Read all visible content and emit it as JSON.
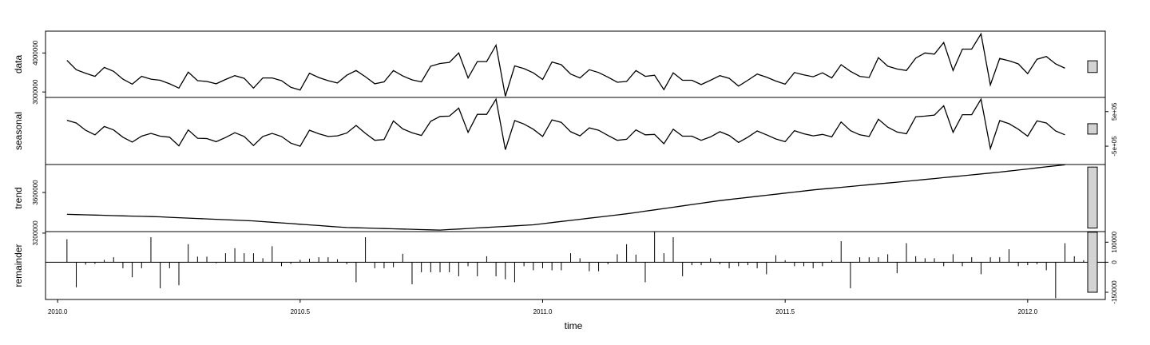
{
  "chart_data": {
    "type": "line",
    "title": "",
    "xlabel": "time",
    "xlim": [
      2009.975,
      2012.16
    ],
    "x_ticks": [
      {
        "value": 2010.0,
        "label": "2010.0"
      },
      {
        "value": 2010.5,
        "label": "2010.5"
      },
      {
        "value": 2011.0,
        "label": "2011.0"
      },
      {
        "value": 2011.5,
        "label": "2011.5"
      },
      {
        "value": 2012.0,
        "label": "2012.0"
      }
    ],
    "x_start": 2010.0192,
    "x_step": 0.0192308,
    "panels": [
      {
        "name": "data",
        "ylabel": "data",
        "kind": "line",
        "ylim": [
          2860000,
          4560000
        ],
        "y_ticks": [
          {
            "value": 3000000,
            "label": "3000000"
          },
          {
            "value": 4000000,
            "label": "4000000"
          }
        ],
        "scale_bar": [
          3500000,
          3800000
        ],
        "values": [
          3810000,
          3570000,
          3480000,
          3400000,
          3630000,
          3530000,
          3330000,
          3200000,
          3400000,
          3330000,
          3300000,
          3210000,
          3100000,
          3510000,
          3290000,
          3270000,
          3210000,
          3320000,
          3420000,
          3350000,
          3100000,
          3360000,
          3360000,
          3290000,
          3120000,
          3050000,
          3480000,
          3370000,
          3290000,
          3230000,
          3430000,
          3550000,
          3390000,
          3210000,
          3260000,
          3550000,
          3410000,
          3310000,
          3260000,
          3660000,
          3730000,
          3760000,
          4000000,
          3360000,
          3780000,
          3780000,
          4200000,
          2890000,
          3670000,
          3600000,
          3490000,
          3320000,
          3770000,
          3700000,
          3460000,
          3360000,
          3570000,
          3500000,
          3380000,
          3250000,
          3270000,
          3550000,
          3400000,
          3430000,
          3060000,
          3490000,
          3300000,
          3300000,
          3190000,
          3300000,
          3420000,
          3350000,
          3150000,
          3300000,
          3460000,
          3380000,
          3280000,
          3200000,
          3500000,
          3440000,
          3390000,
          3490000,
          3360000,
          3700000,
          3530000,
          3400000,
          3370000,
          3880000,
          3660000,
          3590000,
          3550000,
          3870000,
          4000000,
          3970000,
          4270000,
          3550000,
          4100000,
          4100000,
          4490000,
          3180000,
          3860000,
          3800000,
          3720000,
          3470000,
          3840000,
          3910000,
          3720000,
          3610000
        ]
      },
      {
        "name": "seasonal",
        "ylabel": "seasonal",
        "kind": "line",
        "ylim": [
          -1030000,
          910000
        ],
        "y_ticks": [
          {
            "value": -500000,
            "label": "-5e+05"
          },
          {
            "value": 500000,
            "label": "5e+05"
          }
        ],
        "scale_bar": [
          -150000,
          150000
        ],
        "values": [
          250000,
          170000,
          -40000,
          -170000,
          70000,
          -30000,
          -240000,
          -380000,
          -210000,
          -130000,
          -210000,
          -240000,
          -490000,
          -30000,
          -270000,
          -280000,
          -370000,
          -250000,
          -110000,
          -220000,
          -480000,
          -220000,
          -130000,
          -220000,
          -410000,
          -500000,
          -40000,
          -140000,
          -220000,
          -200000,
          -120000,
          100000,
          -130000,
          -330000,
          -310000,
          230000,
          0,
          -110000,
          -190000,
          220000,
          360000,
          370000,
          600000,
          -100000,
          420000,
          420000,
          860000,
          -600000,
          240000,
          140000,
          -10000,
          -220000,
          260000,
          190000,
          -80000,
          -200000,
          30000,
          -40000,
          -190000,
          -330000,
          -300000,
          -30000,
          -170000,
          -160000,
          -430000,
          -10000,
          -210000,
          -210000,
          -330000,
          -230000,
          -80000,
          -190000,
          -390000,
          -240000,
          -60000,
          -170000,
          -290000,
          -370000,
          -50000,
          -140000,
          -200000,
          -160000,
          -230000,
          200000,
          -50000,
          -170000,
          -220000,
          280000,
          50000,
          -90000,
          -140000,
          350000,
          370000,
          400000,
          670000,
          -100000,
          410000,
          410000,
          860000,
          -570000,
          240000,
          150000,
          -10000,
          -210000,
          230000,
          170000,
          -60000,
          -170000
        ]
      },
      {
        "name": "trend",
        "ylabel": "trend",
        "kind": "line",
        "ylim": [
          3215000,
          3875000
        ],
        "y_ticks": [
          {
            "value": 3200000,
            "label": "3200000"
          },
          {
            "value": 3600000,
            "label": "3600000"
          }
        ],
        "scale_bar": [
          3250000,
          3850000
        ],
        "anchor_indices": [
          0,
          10,
          20,
          30,
          40,
          50,
          60,
          70,
          80,
          90,
          100,
          107
        ],
        "anchor_values": [
          3385000,
          3360000,
          3320000,
          3255000,
          3230000,
          3282000,
          3390000,
          3520000,
          3625000,
          3710000,
          3800000,
          3873000
        ]
      },
      {
        "name": "remainder",
        "ylabel": "remainder",
        "kind": "bars",
        "ylim": [
          -186000,
          153000
        ],
        "y_ticks": [
          {
            "value": -150000,
            "label": "-150000"
          },
          {
            "value": 0,
            "label": "0"
          },
          {
            "value": 100000,
            "label": "100000"
          }
        ],
        "scale_bar": [
          -150000,
          150000
        ],
        "values": [
          115000,
          -125000,
          -12000,
          -8000,
          12000,
          25000,
          -30000,
          -75000,
          -30000,
          125000,
          -130000,
          -30000,
          -115000,
          90000,
          28000,
          28000,
          -5000,
          45000,
          70000,
          45000,
          45000,
          20000,
          80000,
          -20000,
          -8000,
          12000,
          18000,
          25000,
          25000,
          15000,
          -10000,
          -100000,
          125000,
          -30000,
          -30000,
          -25000,
          42000,
          -110000,
          -50000,
          -50000,
          -50000,
          -50000,
          -70000,
          -20000,
          -70000,
          30000,
          -70000,
          -85000,
          -100000,
          -20000,
          -40000,
          -30000,
          -40000,
          -40000,
          45000,
          20000,
          -45000,
          -45000,
          -10000,
          40000,
          90000,
          38000,
          -100000,
          153000,
          45000,
          125000,
          -70000,
          -15000,
          -15000,
          20000,
          -10000,
          -30000,
          -20000,
          -15000,
          -30000,
          -60000,
          35000,
          10000,
          -20000,
          -20000,
          -30000,
          -20000,
          10000,
          105000,
          -130000,
          25000,
          25000,
          25000,
          40000,
          -55000,
          95000,
          30000,
          20000,
          20000,
          -20000,
          40000,
          -20000,
          25000,
          -60000,
          25000,
          25000,
          65000,
          -20000,
          -15000,
          -10000,
          -40000,
          -180000,
          95000,
          30000,
          10000
        ]
      }
    ]
  }
}
